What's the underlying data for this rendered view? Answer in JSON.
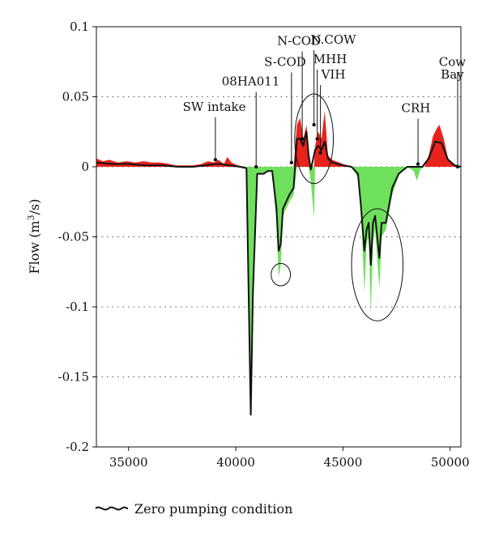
{
  "chart_data": {
    "type": "area",
    "ylabel_main": "Flow (m",
    "ylabel_sup": "3",
    "ylabel_tail": "/s)",
    "xlim": [
      33500,
      50500
    ],
    "ylim": [
      -0.2,
      0.1
    ],
    "x_ticks": [
      35000,
      40000,
      45000,
      50000
    ],
    "x_tick_labels": [
      "35000",
      "40000",
      "45000",
      "50000"
    ],
    "y_ticks": [
      0.1,
      0.05,
      0,
      -0.05,
      -0.1,
      -0.15,
      -0.2
    ],
    "y_tick_labels": [
      "0.1",
      "0.05",
      "0",
      "-0.05",
      "-0.1",
      "-0.15",
      "-0.2"
    ],
    "grid": "dotted horizontal at y ticks",
    "colors": {
      "gain": "#e8231c",
      "loss": "#6fe05c",
      "baseline": "#111111"
    },
    "series": [
      {
        "name": "Zero pumping condition",
        "points": [
          [
            33500,
            0.003
          ],
          [
            34200,
            0.002
          ],
          [
            35000,
            0.002
          ],
          [
            35800,
            0.001
          ],
          [
            36600,
            0.001
          ],
          [
            37300,
            0.0
          ],
          [
            38000,
            0.0
          ],
          [
            38600,
            0.001
          ],
          [
            39000,
            0.002
          ],
          [
            39300,
            0.002
          ],
          [
            39700,
            0.001
          ],
          [
            40200,
            0.0
          ],
          [
            40500,
            -0.001
          ],
          [
            40600,
            -0.09
          ],
          [
            40700,
            -0.177
          ],
          [
            40800,
            -0.09
          ],
          [
            41000,
            -0.005
          ],
          [
            41300,
            -0.005
          ],
          [
            41500,
            -0.003
          ],
          [
            41700,
            -0.003
          ],
          [
            41900,
            -0.03
          ],
          [
            42000,
            -0.06
          ],
          [
            42100,
            -0.055
          ],
          [
            42200,
            -0.03
          ],
          [
            42500,
            -0.02
          ],
          [
            42700,
            -0.015
          ],
          [
            42850,
            0.02
          ],
          [
            43000,
            0.02
          ],
          [
            43150,
            0.015
          ],
          [
            43300,
            0.025
          ],
          [
            43400,
            0.008
          ],
          [
            43500,
            -0.002
          ],
          [
            43700,
            0.012
          ],
          [
            43850,
            0.015
          ],
          [
            44000,
            0.012
          ],
          [
            44150,
            0.018
          ],
          [
            44300,
            0.006
          ],
          [
            44500,
            0.003
          ],
          [
            45000,
            0.001
          ],
          [
            45400,
            0.0
          ],
          [
            45700,
            -0.005
          ],
          [
            45850,
            -0.03
          ],
          [
            46000,
            -0.06
          ],
          [
            46100,
            -0.045
          ],
          [
            46200,
            -0.04
          ],
          [
            46300,
            -0.07
          ],
          [
            46400,
            -0.04
          ],
          [
            46500,
            -0.035
          ],
          [
            46700,
            -0.065
          ],
          [
            46800,
            -0.04
          ],
          [
            47000,
            -0.04
          ],
          [
            47300,
            -0.015
          ],
          [
            47600,
            -0.005
          ],
          [
            48000,
            0.0
          ],
          [
            48400,
            0.0
          ],
          [
            48700,
            0.0
          ],
          [
            49000,
            0.006
          ],
          [
            49300,
            0.018
          ],
          [
            49600,
            0.017
          ],
          [
            49900,
            0.005
          ],
          [
            50200,
            0.001
          ],
          [
            50500,
            0.0
          ]
        ],
        "observed_points": [
          [
            33500,
            0.006
          ],
          [
            33800,
            0.004
          ],
          [
            34100,
            0.005
          ],
          [
            34500,
            0.003
          ],
          [
            34900,
            0.004
          ],
          [
            35300,
            0.003
          ],
          [
            35700,
            0.004
          ],
          [
            36100,
            0.003
          ],
          [
            36500,
            0.003
          ],
          [
            36900,
            0.002
          ],
          [
            37200,
            0.001
          ],
          [
            37600,
            0.001
          ],
          [
            38000,
            0.001
          ],
          [
            38400,
            0.002
          ],
          [
            38700,
            0.004
          ],
          [
            39000,
            0.003
          ],
          [
            39200,
            0.005
          ],
          [
            39450,
            0.002
          ],
          [
            39600,
            0.007
          ],
          [
            39800,
            0.003
          ],
          [
            40100,
            0.001
          ],
          [
            40400,
            0.0
          ],
          [
            40500,
            -0.002
          ],
          [
            40600,
            -0.11
          ],
          [
            40700,
            -0.178
          ],
          [
            40800,
            -0.11
          ],
          [
            41000,
            -0.005
          ],
          [
            41300,
            -0.005
          ],
          [
            41500,
            -0.003
          ],
          [
            41700,
            -0.003
          ],
          [
            41900,
            -0.04
          ],
          [
            42000,
            -0.079
          ],
          [
            42100,
            -0.07
          ],
          [
            42200,
            -0.035
          ],
          [
            42500,
            -0.025
          ],
          [
            42700,
            -0.02
          ],
          [
            42850,
            0.03
          ],
          [
            43000,
            0.035
          ],
          [
            43150,
            0.02
          ],
          [
            43300,
            0.03
          ],
          [
            43400,
            0.01
          ],
          [
            43500,
            -0.01
          ],
          [
            43650,
            -0.037
          ],
          [
            43700,
            0.015
          ],
          [
            43850,
            0.025
          ],
          [
            44000,
            0.02
          ],
          [
            44150,
            0.04
          ],
          [
            44300,
            0.008
          ],
          [
            44500,
            0.005
          ],
          [
            45000,
            0.002
          ],
          [
            45400,
            0.0
          ],
          [
            45700,
            -0.008
          ],
          [
            45850,
            -0.035
          ],
          [
            46000,
            -0.09
          ],
          [
            46100,
            -0.055
          ],
          [
            46200,
            -0.05
          ],
          [
            46300,
            -0.105
          ],
          [
            46400,
            -0.055
          ],
          [
            46500,
            -0.045
          ],
          [
            46700,
            -0.087
          ],
          [
            46800,
            -0.05
          ],
          [
            47000,
            -0.045
          ],
          [
            47300,
            -0.02
          ],
          [
            47600,
            -0.006
          ],
          [
            48000,
            0.0
          ],
          [
            48300,
            -0.003
          ],
          [
            48450,
            -0.01
          ],
          [
            48600,
            -0.002
          ],
          [
            48800,
            0.0
          ],
          [
            49000,
            0.008
          ],
          [
            49200,
            0.022
          ],
          [
            49400,
            0.028
          ],
          [
            49500,
            0.03
          ],
          [
            49700,
            0.02
          ],
          [
            49900,
            0.006
          ],
          [
            50200,
            0.002
          ],
          [
            50500,
            0.0
          ]
        ]
      }
    ],
    "annotations": [
      {
        "label": "SW intake",
        "x": 39050,
        "y": 0.005,
        "text_x": 39000,
        "text_y": 0.04
      },
      {
        "label": "08HA011",
        "x": 40950,
        "y": 0.0,
        "text_x": 40700,
        "text_y": 0.058
      },
      {
        "label": "S-COD",
        "x": 42600,
        "y": 0.003,
        "text_x": 42300,
        "text_y": 0.072
      },
      {
        "label": "N-COD",
        "x": 43100,
        "y": 0.02,
        "text_x": 42950,
        "text_y": 0.087
      },
      {
        "label": "N.COW",
        "x": 43650,
        "y": 0.03,
        "text_x": 44550,
        "text_y": 0.088
      },
      {
        "label": "MHH",
        "x": 43800,
        "y": 0.02,
        "text_x": 44400,
        "text_y": 0.074
      },
      {
        "label": "VIH",
        "x": 43950,
        "y": 0.01,
        "text_x": 44550,
        "text_y": 0.063
      },
      {
        "label": "CRH",
        "x": 48500,
        "y": 0.002,
        "text_x": 48400,
        "text_y": 0.039
      },
      {
        "label": "Cow",
        "x": 50350,
        "y": 0.0,
        "text_x": 50100,
        "text_y": 0.072
      },
      {
        "label": "Bay",
        "x": 50350,
        "y": 0.0,
        "text_x": 50100,
        "text_y": 0.063
      }
    ],
    "ellipses": [
      {
        "cx": 43650,
        "cy": 0.02,
        "rx": 900,
        "ry": 0.032
      },
      {
        "cx": 42100,
        "cy": -0.077,
        "rx": 450,
        "ry": 0.008
      },
      {
        "cx": 46600,
        "cy": -0.07,
        "rx": 1200,
        "ry": 0.04
      }
    ],
    "legend": {
      "label": "Zero pumping condition",
      "placement": "bottom-left"
    }
  }
}
